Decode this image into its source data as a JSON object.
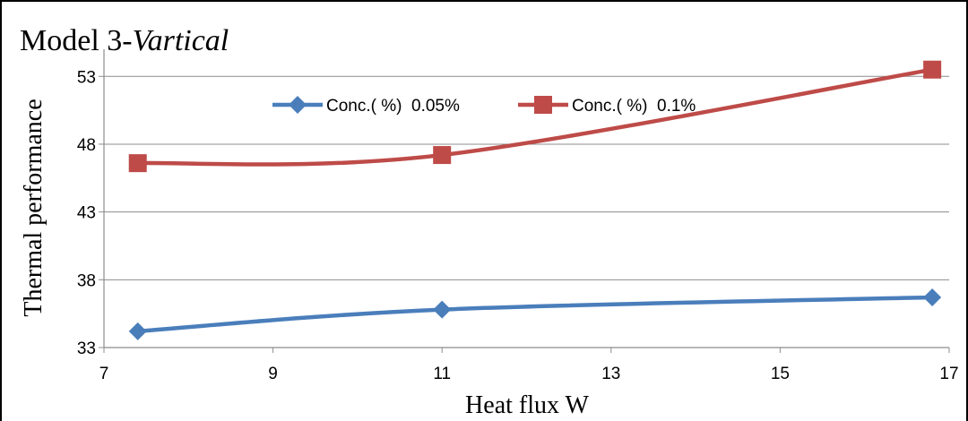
{
  "chart_data": {
    "type": "line",
    "title_prefix": "Model 3-",
    "title_italic": "Vartical",
    "xlabel": "Heat flux W",
    "ylabel": "Thermal performance",
    "xlim": [
      7,
      17
    ],
    "ylim": [
      33,
      55
    ],
    "xticks": [
      "7",
      "9",
      "11",
      "13",
      "15",
      "17"
    ],
    "yticks": [
      "33",
      "38",
      "43",
      "48",
      "53"
    ],
    "legend_position": "top-center",
    "grid": "horizontal",
    "series": [
      {
        "name": "Conc.( %)  0.05%",
        "color": "#4a7ebb",
        "marker": "diamond",
        "x": [
          7.4,
          11,
          16.8
        ],
        "y": [
          34.2,
          35.8,
          36.7
        ]
      },
      {
        "name": "Conc.( %)  0.1%",
        "color": "#be4b48",
        "marker": "square",
        "x": [
          7.4,
          11,
          16.8
        ],
        "y": [
          46.6,
          47.2,
          53.5
        ]
      }
    ]
  }
}
